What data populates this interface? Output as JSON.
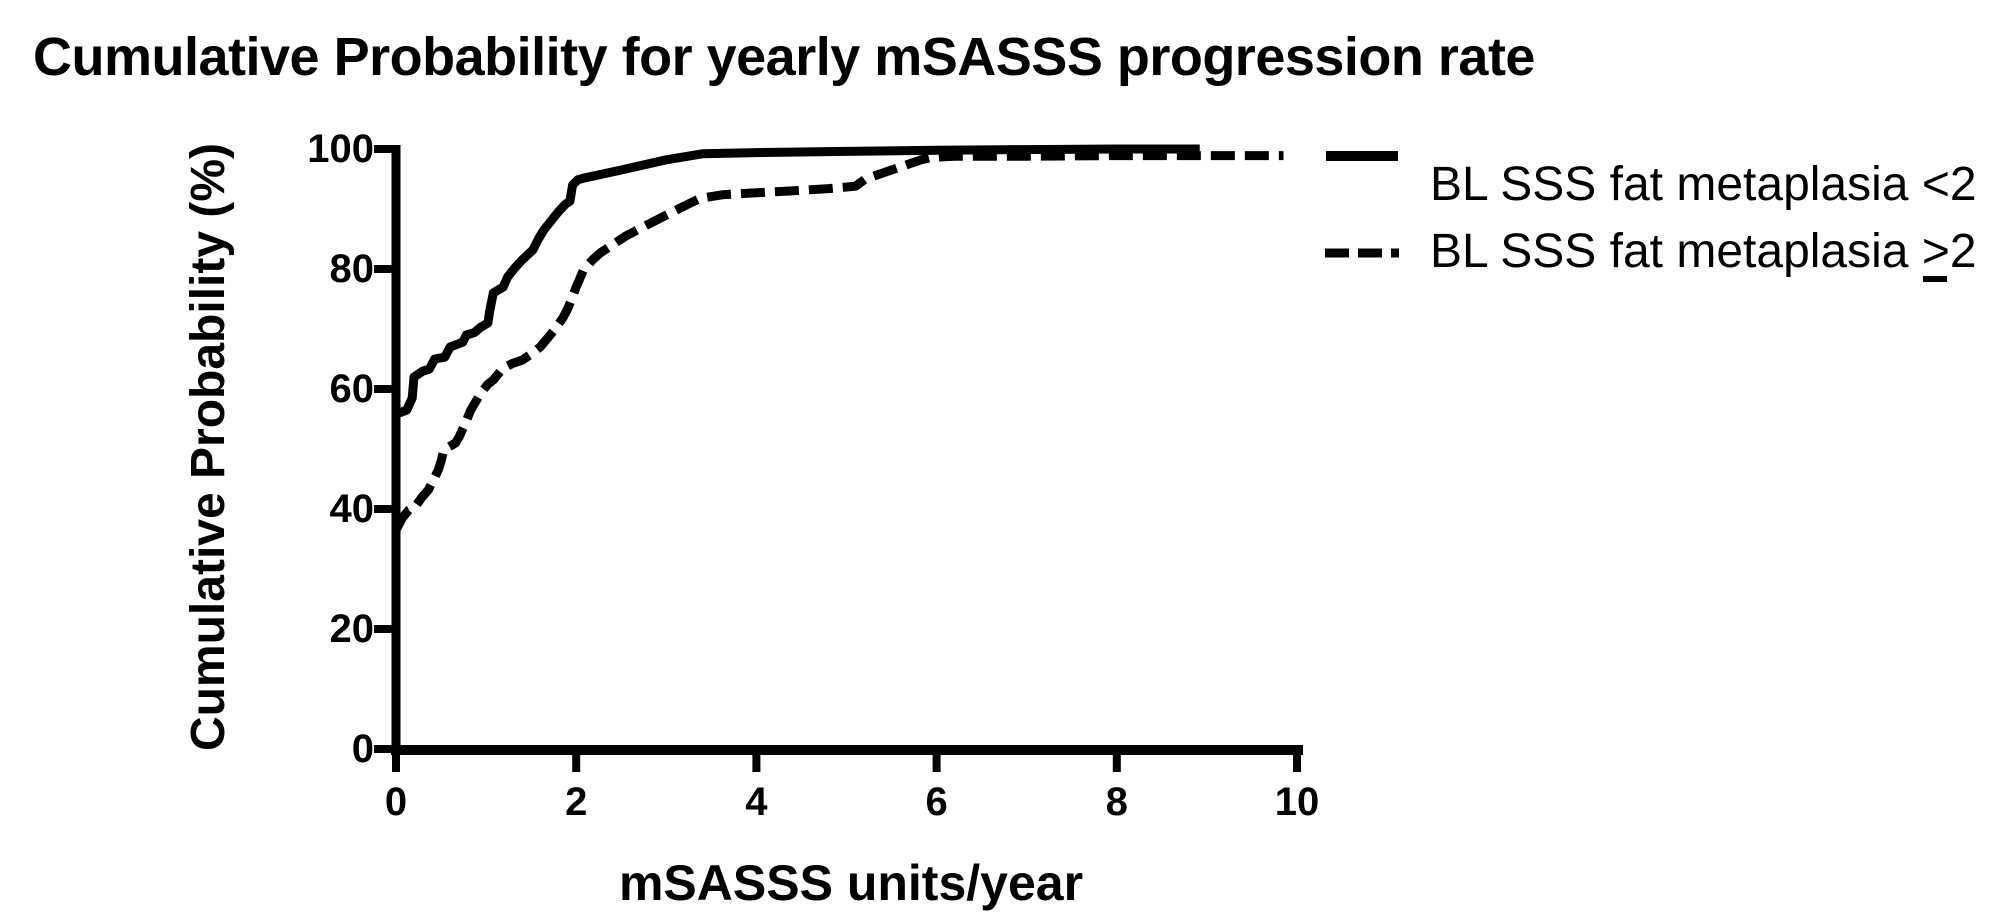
{
  "title": "Cumulative Probability for yearly mSASSS progression rate",
  "axes": {
    "y_title": "Cumulative Probability (%)",
    "x_title": "mSASSS units/year"
  },
  "legend": {
    "items": [
      {
        "prefix": "BL SSS fat metaplasia ",
        "symbol": "<",
        "suffix": "2",
        "underlined": false,
        "line_style": "solid"
      },
      {
        "prefix": "BL SSS fat metaplasia ",
        "symbol": ">",
        "suffix": "2",
        "underlined": true,
        "line_style": "dashed"
      }
    ]
  },
  "colors": {
    "ink": "#000000",
    "background": "#ffffff"
  },
  "chart_data": {
    "type": "line",
    "title": "Cumulative Probability for yearly mSASSS progression rate",
    "xlabel": "mSASSS units/year",
    "ylabel": "Cumulative Probability (%)",
    "xlim": [
      0,
      10
    ],
    "ylim": [
      0,
      100
    ],
    "x_ticks": [
      0,
      2,
      4,
      6,
      8,
      10
    ],
    "y_ticks": [
      0,
      20,
      40,
      60,
      80,
      100
    ],
    "grid": false,
    "legend_position": "right",
    "series": [
      {
        "name": "BL SSS fat metaplasia <2",
        "style": "solid",
        "points": [
          [
            0,
            55.8
          ],
          [
            0.12,
            56.5
          ],
          [
            0.18,
            58.5
          ],
          [
            0.2,
            62
          ],
          [
            0.3,
            63
          ],
          [
            0.37,
            63.3
          ],
          [
            0.43,
            65
          ],
          [
            0.54,
            65.3
          ],
          [
            0.6,
            67
          ],
          [
            0.74,
            67.8
          ],
          [
            0.78,
            69
          ],
          [
            0.87,
            69.4
          ],
          [
            0.94,
            70.3
          ],
          [
            1.02,
            71
          ],
          [
            1.04,
            73
          ],
          [
            1.08,
            76
          ],
          [
            1.19,
            77
          ],
          [
            1.24,
            78.7
          ],
          [
            1.32,
            80.2
          ],
          [
            1.4,
            81.5
          ],
          [
            1.52,
            83.2
          ],
          [
            1.58,
            85
          ],
          [
            1.64,
            86.5
          ],
          [
            1.72,
            88
          ],
          [
            1.8,
            89.5
          ],
          [
            1.88,
            90.8
          ],
          [
            1.93,
            91.3
          ],
          [
            1.96,
            94
          ],
          [
            2.02,
            94.9
          ],
          [
            2.1,
            95.2
          ],
          [
            2.5,
            96.5
          ],
          [
            3.0,
            98.2
          ],
          [
            3.4,
            99.2
          ],
          [
            4.0,
            99.4
          ],
          [
            5.0,
            99.6
          ],
          [
            6.0,
            99.8
          ],
          [
            7.0,
            99.9
          ],
          [
            8.0,
            100
          ],
          [
            8.92,
            100
          ]
        ]
      },
      {
        "name": "BL SSS fat metaplasia ≥2",
        "style": "dashed",
        "points": [
          [
            0,
            36.5
          ],
          [
            0.07,
            38.5
          ],
          [
            0.14,
            39.8
          ],
          [
            0.21,
            40.3
          ],
          [
            0.29,
            42
          ],
          [
            0.36,
            43.2
          ],
          [
            0.42,
            45
          ],
          [
            0.47,
            46.5
          ],
          [
            0.5,
            48
          ],
          [
            0.53,
            49.8
          ],
          [
            0.58,
            50.3
          ],
          [
            0.66,
            51
          ],
          [
            0.7,
            52
          ],
          [
            0.76,
            54
          ],
          [
            0.83,
            56.5
          ],
          [
            0.94,
            59.3
          ],
          [
            1.02,
            60.8
          ],
          [
            1.08,
            61.5
          ],
          [
            1.19,
            63.5
          ],
          [
            1.3,
            64.3
          ],
          [
            1.4,
            64.8
          ],
          [
            1.5,
            65.8
          ],
          [
            1.6,
            67
          ],
          [
            1.7,
            68.8
          ],
          [
            1.78,
            70.3
          ],
          [
            1.85,
            71.8
          ],
          [
            1.9,
            73.2
          ],
          [
            1.95,
            75
          ],
          [
            2.0,
            77
          ],
          [
            2.08,
            79.8
          ],
          [
            2.18,
            81.5
          ],
          [
            2.27,
            82.7
          ],
          [
            2.55,
            85.5
          ],
          [
            2.91,
            88.3
          ],
          [
            3.2,
            90.5
          ],
          [
            3.38,
            91.8
          ],
          [
            3.64,
            92.4
          ],
          [
            4.0,
            92.7
          ],
          [
            4.37,
            93
          ],
          [
            4.8,
            93.4
          ],
          [
            5.1,
            93.8
          ],
          [
            5.21,
            95
          ],
          [
            5.5,
            96.5
          ],
          [
            5.83,
            98.2
          ],
          [
            5.94,
            98.6
          ],
          [
            6.2,
            98.8
          ],
          [
            7.0,
            98.8
          ],
          [
            8.0,
            98.9
          ],
          [
            9.0,
            98.9
          ],
          [
            9.85,
            98.9
          ]
        ]
      }
    ]
  }
}
